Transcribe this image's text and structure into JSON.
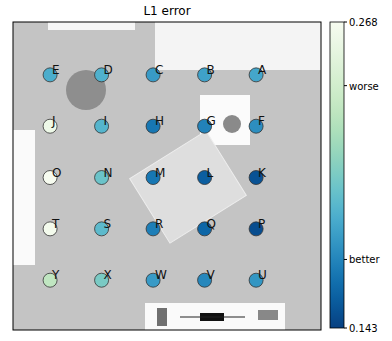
{
  "chart_data": {
    "type": "scatter",
    "title": "L1 error",
    "labels": [
      "A",
      "B",
      "C",
      "D",
      "E",
      "F",
      "G",
      "H",
      "I",
      "J",
      "K",
      "L",
      "M",
      "N",
      "O",
      "P",
      "Q",
      "R",
      "S",
      "T",
      "U",
      "V",
      "W",
      "X",
      "Y"
    ],
    "x": [
      5,
      4,
      3,
      2,
      1,
      5,
      4,
      3,
      2,
      1,
      5,
      4,
      3,
      2,
      1,
      5,
      4,
      3,
      2,
      1,
      5,
      4,
      3,
      2,
      1
    ],
    "y": [
      5,
      5,
      5,
      5,
      5,
      4,
      4,
      4,
      4,
      4,
      3,
      3,
      3,
      3,
      3,
      2,
      2,
      2,
      2,
      2,
      1,
      1,
      1,
      1,
      1
    ],
    "values": [
      0.185,
      0.183,
      0.18,
      0.19,
      0.188,
      0.175,
      0.17,
      0.165,
      0.192,
      0.262,
      0.15,
      0.155,
      0.165,
      0.2,
      0.268,
      0.148,
      0.158,
      0.168,
      0.195,
      0.266,
      0.178,
      0.172,
      0.18,
      0.205,
      0.232
    ],
    "xlim": [
      0.28,
      6.26
    ],
    "ylim": [
      0.03,
      6.03
    ],
    "tick_labels": false,
    "colorbar": {
      "range": [
        0.143,
        0.268
      ],
      "ticks": [
        0.143,
        {
          "value": 0.171,
          "label": "better"
        },
        {
          "value": 0.242,
          "label": "worse"
        },
        0.268
      ]
    }
  }
}
